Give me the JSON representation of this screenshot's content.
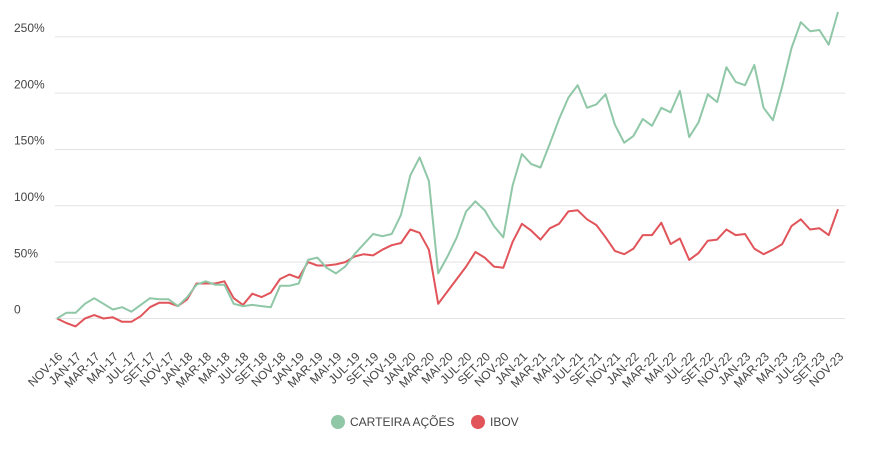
{
  "chart_data": {
    "type": "line",
    "categories": [
      "NOV-16",
      null,
      "JAN-17",
      null,
      "MAR-17",
      null,
      "MAI-17",
      null,
      "JUL-17",
      null,
      "SET-17",
      null,
      "NOV-17",
      null,
      "JAN-18",
      null,
      "MAR-18",
      null,
      "MAI-18",
      null,
      "JUL-18",
      null,
      "SET-18",
      null,
      "NOV-18",
      null,
      "JAN-19",
      null,
      "MAR-19",
      null,
      "MAI-19",
      null,
      "JUL-19",
      null,
      "SET-19",
      null,
      "NOV-19",
      null,
      "JAN-20",
      null,
      "MAR-20",
      null,
      "MAI-20",
      null,
      "JUL-20",
      null,
      "SET-20",
      null,
      "NOV-20",
      null,
      "JAN-21",
      null,
      "MAR-21",
      null,
      "MAI-21",
      null,
      "JUL-21",
      null,
      "SET-21",
      null,
      "NOV-21",
      null,
      "JAN-22",
      null,
      "MAR-22",
      null,
      "MAI-22",
      null,
      "JUL-22",
      null,
      "SET-22",
      null,
      "NOV-22",
      null,
      "JAN-23",
      null,
      "MAR-23",
      null,
      "MAI-23",
      null,
      "JUL-23",
      null,
      "SET-23",
      null,
      "NOV-23"
    ],
    "series": [
      {
        "name": "CARTEIRA AÇÕES",
        "color": "#8fc7a7",
        "values": [
          0,
          5,
          5,
          13,
          18,
          13,
          8,
          10,
          6,
          12,
          18,
          17,
          17,
          11,
          19,
          30,
          33,
          30,
          30,
          13,
          11,
          12,
          11,
          10,
          29,
          29,
          31,
          52,
          54,
          45,
          40,
          46,
          57,
          66,
          75,
          73,
          75,
          92,
          127,
          143,
          122,
          40,
          55,
          72,
          95,
          104,
          96,
          82,
          72,
          118,
          146,
          137,
          134,
          155,
          177,
          196,
          207,
          187,
          190,
          199,
          172,
          156,
          162,
          177,
          171,
          187,
          183,
          202,
          161,
          174,
          199,
          192,
          223,
          210,
          207,
          225,
          187,
          176,
          206,
          240,
          263,
          255,
          256,
          243,
          272
        ]
      },
      {
        "name": "IBOV",
        "color": "#e0545a",
        "values": [
          0,
          -4,
          -7,
          0,
          3,
          0,
          1,
          -3,
          -3,
          2,
          10,
          14,
          14,
          11,
          17,
          31,
          31,
          31,
          33,
          18,
          12,
          22,
          19,
          23,
          35,
          39,
          36,
          50,
          47,
          47,
          48,
          50,
          55,
          57,
          56,
          61,
          65,
          67,
          79,
          76,
          61,
          13,
          24,
          35,
          46,
          59,
          54,
          46,
          45,
          68,
          84,
          78,
          70,
          80,
          84,
          95,
          96,
          88,
          83,
          72,
          60,
          57,
          62,
          74,
          74,
          85,
          66,
          71,
          52,
          58,
          69,
          70,
          79,
          74,
          75,
          62,
          57,
          61,
          66,
          82,
          88,
          79,
          80,
          74,
          97
        ]
      }
    ],
    "ylim": [
      -20,
      280
    ],
    "yticks": [
      0,
      {
        "value": 50,
        "label": "50%"
      },
      {
        "value": 100,
        "label": "100%"
      },
      {
        "value": 150,
        "label": "150%"
      },
      {
        "value": 200,
        "label": "200%"
      },
      {
        "value": 250,
        "label": "250%"
      }
    ],
    "grid": true,
    "legend": "bottom"
  }
}
